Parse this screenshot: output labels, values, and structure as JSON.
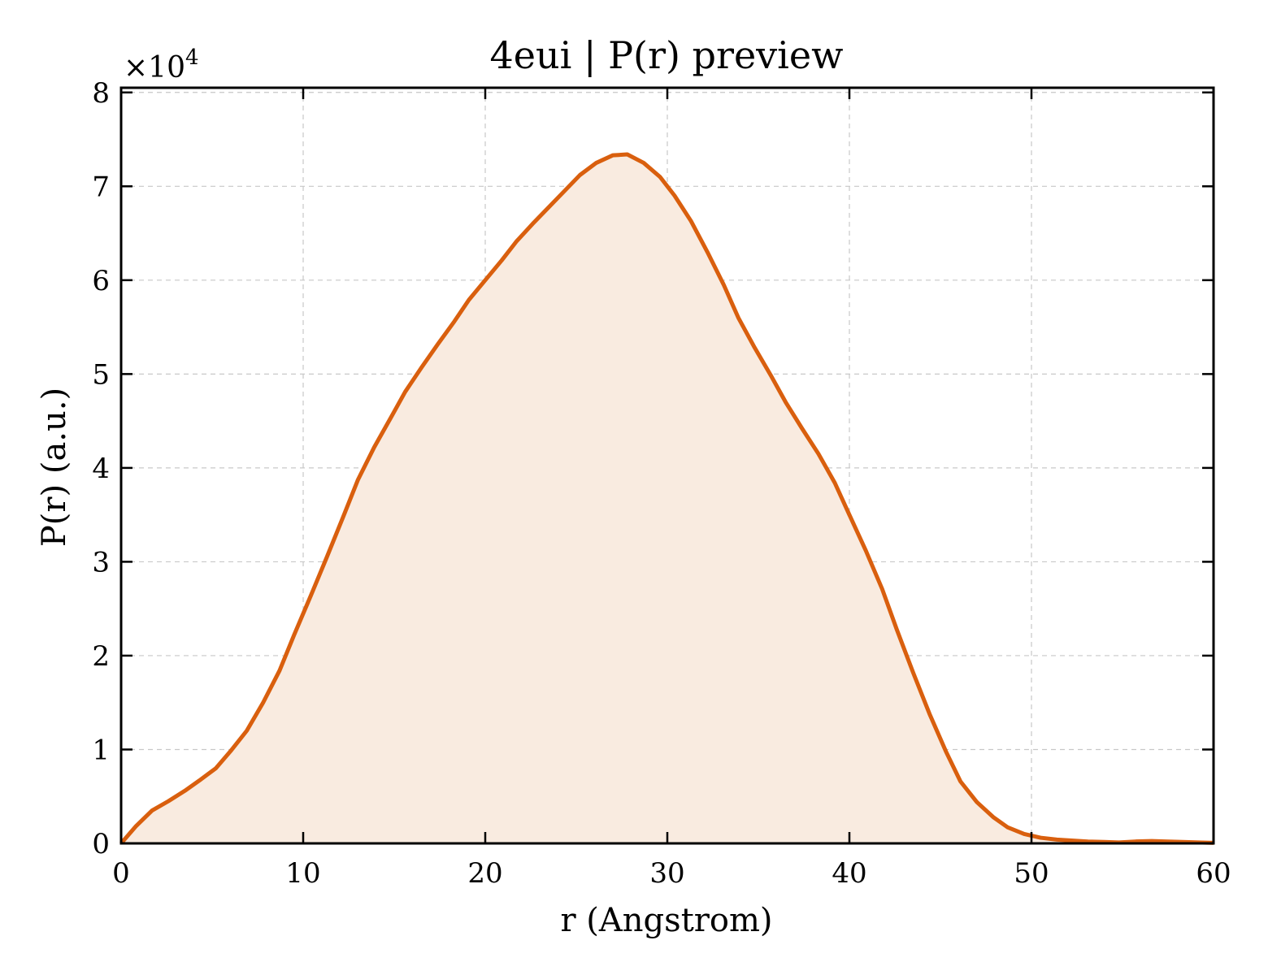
{
  "chart_data": {
    "type": "area",
    "title": "4eui | P(r) preview",
    "xlabel": "r (Angstrom)",
    "ylabel": "P(r) (a.u.)",
    "y_multiplier_label": "×10",
    "y_multiplier_exponent": "4",
    "xlim": [
      0,
      60
    ],
    "ylim": [
      0,
      8.05
    ],
    "xticks": [
      0,
      10,
      20,
      30,
      40,
      50,
      60
    ],
    "yticks": [
      0,
      1,
      2,
      3,
      4,
      5,
      6,
      7,
      8
    ],
    "grid": true,
    "line_color": "#D95F0E",
    "fill_color": "#F9EBE0",
    "series": [
      {
        "x": [
          0,
          0.8,
          1.7,
          2.6,
          3.5,
          4.3,
          5.2,
          6.0,
          6.9,
          7.8,
          8.7,
          9.5,
          10.4,
          11.3,
          12.2,
          13.0,
          13.9,
          14.8,
          15.6,
          16.5,
          17.4,
          18.3,
          19.1,
          20.0,
          20.9,
          21.7,
          22.6,
          23.5,
          24.4,
          25.2,
          26.1,
          27.0,
          27.8,
          28.7,
          29.6,
          30.4,
          31.3,
          32.2,
          33.1,
          33.9,
          34.8,
          35.7,
          36.5,
          37.4,
          38.3,
          39.2,
          40.0,
          40.9,
          41.8,
          42.6,
          43.5,
          44.4,
          45.3,
          46.1,
          47.0,
          47.9,
          48.7,
          49.6,
          50.5,
          51.4,
          52.2,
          53.1,
          54.0,
          54.8,
          55.7,
          56.6,
          57.5,
          58.3,
          59.2,
          60.0
        ],
        "y": [
          0.0,
          0.18,
          0.35,
          0.45,
          0.56,
          0.67,
          0.8,
          0.98,
          1.2,
          1.5,
          1.84,
          2.22,
          2.63,
          3.05,
          3.48,
          3.87,
          4.22,
          4.53,
          4.81,
          5.07,
          5.32,
          5.56,
          5.79,
          6.0,
          6.21,
          6.41,
          6.6,
          6.78,
          6.96,
          7.12,
          7.25,
          7.33,
          7.34,
          7.25,
          7.1,
          6.9,
          6.63,
          6.3,
          5.95,
          5.6,
          5.28,
          4.98,
          4.7,
          4.42,
          4.15,
          3.84,
          3.5,
          3.12,
          2.71,
          2.28,
          1.82,
          1.38,
          0.98,
          0.66,
          0.44,
          0.28,
          0.17,
          0.1,
          0.06,
          0.04,
          0.03,
          0.02,
          0.015,
          0.01,
          0.02,
          0.025,
          0.02,
          0.015,
          0.01,
          0.005
        ]
      }
    ]
  }
}
